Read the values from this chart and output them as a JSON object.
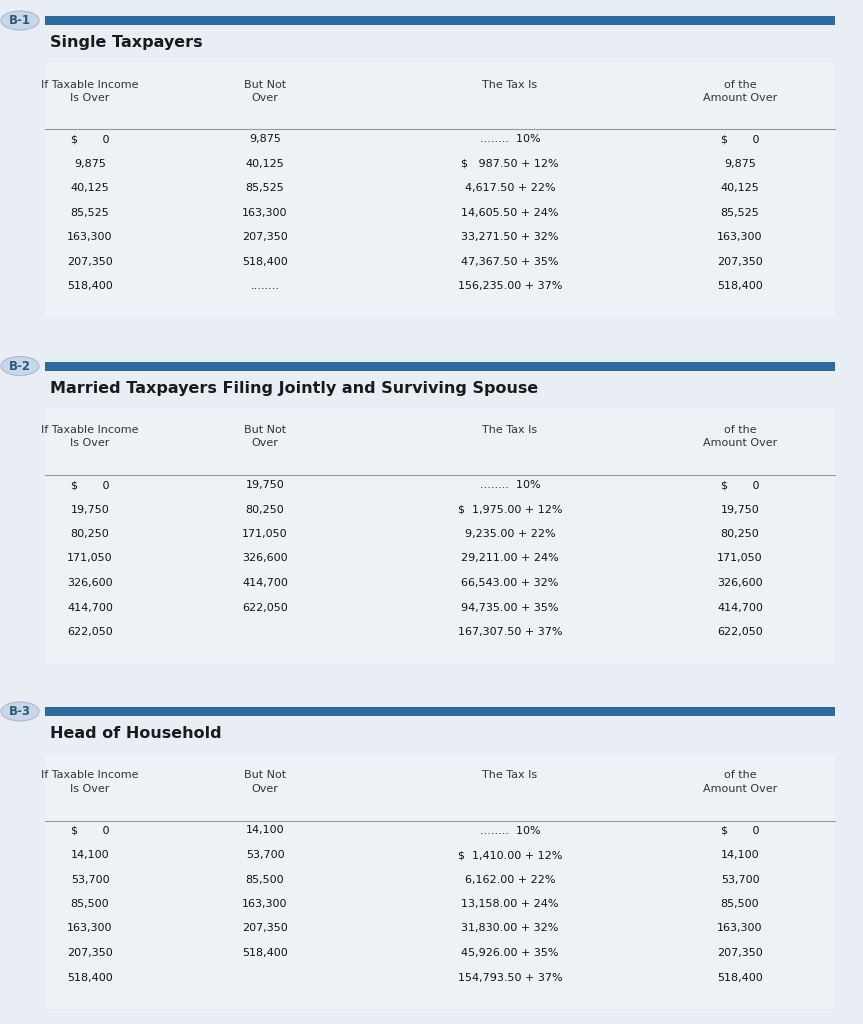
{
  "bg_color": "#e8eef4",
  "table_bg": "#eef2f7",
  "section_bar_color": "#2d6a9f",
  "title_color": "#1a1a1a",
  "badge_color": "#c8d8e8",
  "badge_text_color": "#2d5a7a",
  "header_text_color": "#333333",
  "data_text_color": "#111111",
  "line_color": "#999999",
  "sections": [
    {
      "badge": "B-1",
      "title": "Single Taxpayers",
      "col_headers": [
        "If Taxable Income\nIs Over",
        "But Not\nOver",
        "The Tax Is",
        "of the\nAmount Over"
      ],
      "rows": [
        [
          "$       0",
          "9,875",
          "........  10%",
          "$       0"
        ],
        [
          "9,875",
          "40,125",
          "$   987.50 + 12%",
          "9,875"
        ],
        [
          "40,125",
          "85,525",
          "4,617.50 + 22%",
          "40,125"
        ],
        [
          "85,525",
          "163,300",
          "14,605.50 + 24%",
          "85,525"
        ],
        [
          "163,300",
          "207,350",
          "33,271.50 + 32%",
          "163,300"
        ],
        [
          "207,350",
          "518,400",
          "47,367.50 + 35%",
          "207,350"
        ],
        [
          "518,400",
          "........",
          "156,235.00 + 37%",
          "518,400"
        ]
      ]
    },
    {
      "badge": "B-2",
      "title": "Married Taxpayers Filing Jointly and Surviving Spouse",
      "col_headers": [
        "If Taxable Income\nIs Over",
        "But Not\nOver",
        "The Tax Is",
        "of the\nAmount Over"
      ],
      "rows": [
        [
          "$       0",
          "19,750",
          "........  10%",
          "$       0"
        ],
        [
          "19,750",
          "80,250",
          "$  1,975.00 + 12%",
          "19,750"
        ],
        [
          "80,250",
          "171,050",
          "9,235.00 + 22%",
          "80,250"
        ],
        [
          "171,050",
          "326,600",
          "29,211.00 + 24%",
          "171,050"
        ],
        [
          "326,600",
          "414,700",
          "66,543.00 + 32%",
          "326,600"
        ],
        [
          "414,700",
          "622,050",
          "94,735.00 + 35%",
          "414,700"
        ],
        [
          "622,050",
          "",
          "167,307.50 + 37%",
          "622,050"
        ]
      ]
    },
    {
      "badge": "B-3",
      "title": "Head of Household",
      "col_headers": [
        "If Taxable Income\nIs Over",
        "But Not\nOver",
        "The Tax Is",
        "of the\nAmount Over"
      ],
      "rows": [
        [
          "$       0",
          "14,100",
          "........  10%",
          "$       0"
        ],
        [
          "14,100",
          "53,700",
          "$  1,410.00 + 12%",
          "14,100"
        ],
        [
          "53,700",
          "85,500",
          "6,162.00 + 22%",
          "53,700"
        ],
        [
          "85,500",
          "163,300",
          "13,158.00 + 24%",
          "85,500"
        ],
        [
          "163,300",
          "207,350",
          "31,830.00 + 32%",
          "163,300"
        ],
        [
          "207,350",
          "518,400",
          "45,926.00 + 35%",
          "207,350"
        ],
        [
          "518,400",
          "",
          "154,793.50 + 37%",
          "518,400"
        ]
      ]
    }
  ]
}
